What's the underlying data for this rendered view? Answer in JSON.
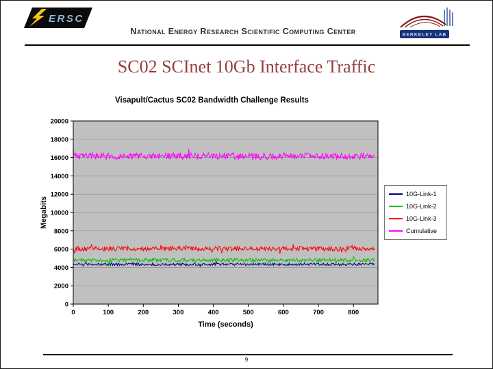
{
  "header": {
    "org_name": "National Energy Research Scientific Computing Center",
    "nersc_logo": {
      "letters": "ERSC"
    },
    "berkeley_logo": {
      "label": "BERKELEY LAB"
    }
  },
  "slide": {
    "title": "SC02 SCInet 10Gb Interface Traffic",
    "page_number": "9"
  },
  "chart_data": {
    "type": "line",
    "title": "Visapult/Cactus SC02 Bandwidth Challenge Results",
    "xlabel": "Time (seconds)",
    "ylabel": "Megabits",
    "xlim": [
      0,
      870
    ],
    "ylim": [
      0,
      20000
    ],
    "x_data_max": 860,
    "xticks": [
      0,
      100,
      200,
      300,
      400,
      500,
      600,
      700,
      800
    ],
    "yticks": [
      0,
      2000,
      4000,
      6000,
      8000,
      10000,
      12000,
      14000,
      16000,
      18000,
      20000
    ],
    "grid": true,
    "legend_position": "right",
    "plot_bg": "#c0c0c0",
    "series": [
      {
        "name": "10G-Link-1",
        "color": "#000080",
        "mean": 4350,
        "noise": 140
      },
      {
        "name": "10G-Link-2",
        "color": "#00c000",
        "mean": 4800,
        "noise": 190
      },
      {
        "name": "10G-Link-3",
        "color": "#ff0000",
        "mean": 6050,
        "noise": 260
      },
      {
        "name": "Cumulative",
        "color": "#ff00ff",
        "mean": 16150,
        "noise": 380
      }
    ]
  }
}
